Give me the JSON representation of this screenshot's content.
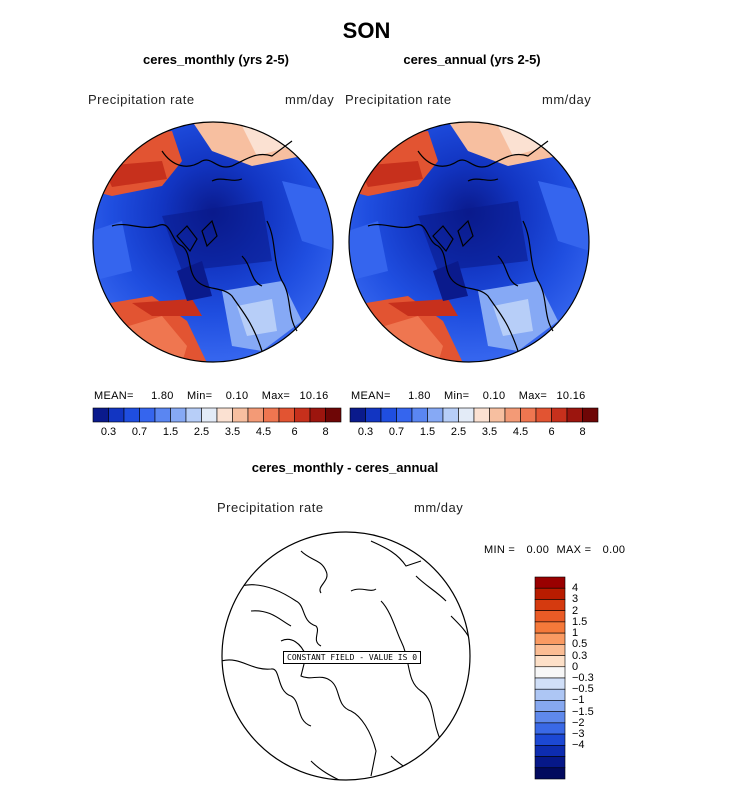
{
  "figure": {
    "title": "SON"
  },
  "panels": [
    {
      "title": "ceres_monthly (yrs 2-5)",
      "field": "Precipitation rate",
      "units": "mm/day",
      "stats": {
        "mean_label": "MEAN=",
        "mean": "1.80",
        "min_label": "Min=",
        "min": "0.10",
        "max_label": "Max=",
        "max": "10.16"
      }
    },
    {
      "title": "ceres_annual (yrs 2-5)",
      "field": "Precipitation rate",
      "units": "mm/day",
      "stats": {
        "mean_label": "MEAN=",
        "mean": "1.80",
        "min_label": "Min=",
        "min": "0.10",
        "max_label": "Max=",
        "max": "10.16"
      }
    }
  ],
  "colorbar": {
    "colors": [
      "#0a1a8c",
      "#1235c2",
      "#1f4ee0",
      "#3565ee",
      "#5a86f2",
      "#86a9f5",
      "#b7cef8",
      "#e3ebf7",
      "#fbe1d2",
      "#f7bfa0",
      "#f39a76",
      "#ef7650",
      "#e25432",
      "#c7301c",
      "#9c150e",
      "#6e0606"
    ],
    "tick_labels": [
      "0.3",
      "0.7",
      "1.5",
      "2.5",
      "3.5",
      "4.5",
      "6",
      "8"
    ]
  },
  "diff_panel": {
    "title": "ceres_monthly - ceres_annual",
    "field": "Precipitation rate",
    "units": "mm/day",
    "stats": {
      "min_label": "MIN =",
      "min": "0.00",
      "max_label": "MAX =",
      "max": "0.00"
    },
    "constant_label": "CONSTANT FIELD - VALUE IS  0",
    "legend_colors": [
      "#990000",
      "#b81c00",
      "#d53a0f",
      "#ea5b26",
      "#f5793a",
      "#fa9a62",
      "#fbbd94",
      "#fde0c8",
      "#f7f7f7",
      "#d0dff8",
      "#adc6f4",
      "#86a8f0",
      "#5f89ec",
      "#3a69e6",
      "#1c48d4",
      "#0d2cb0",
      "#061889",
      "#020a5e"
    ],
    "legend_labels": [
      "4",
      "3",
      "2",
      "1.5",
      "1",
      "0.5",
      "0.3",
      "0",
      "−0.3",
      "−0.5",
      "−1",
      "−1.5",
      "−2",
      "−3",
      "−4"
    ]
  }
}
